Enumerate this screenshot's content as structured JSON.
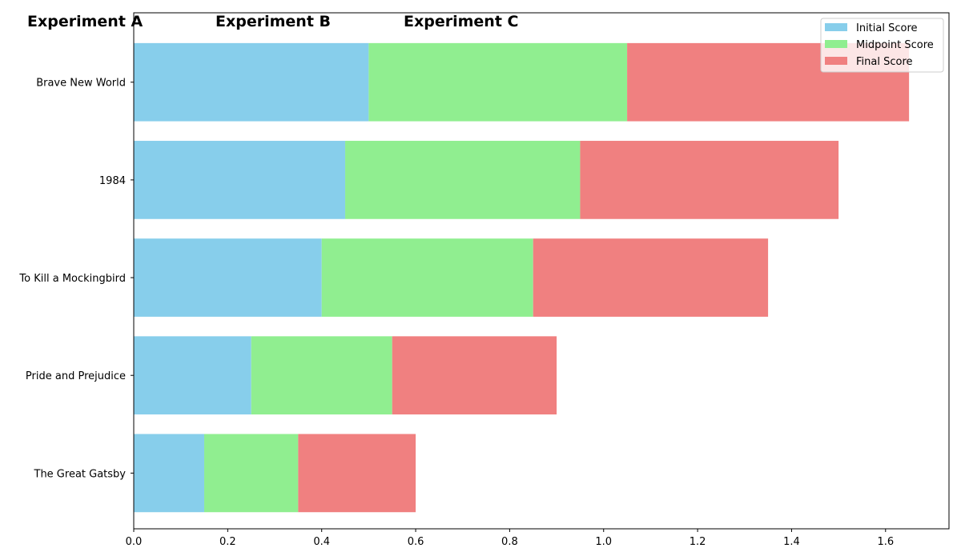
{
  "chart_data": {
    "type": "bar",
    "orientation": "horizontal",
    "stacked": true,
    "categories": [
      "The Great Gatsby",
      "Pride and Prejudice",
      "To Kill a Mockingbird",
      "1984",
      "Brave New World"
    ],
    "series": [
      {
        "name": "Initial Score",
        "color": "#87CEEB",
        "values": [
          0.15,
          0.25,
          0.4,
          0.45,
          0.5
        ]
      },
      {
        "name": "Midpoint Score",
        "color": "#90EE90",
        "values": [
          0.2,
          0.3,
          0.45,
          0.5,
          0.55
        ]
      },
      {
        "name": "Final Score",
        "color": "#F08080",
        "values": [
          0.25,
          0.35,
          0.5,
          0.55,
          0.6
        ]
      }
    ],
    "experiment_labels": [
      "Experiment A",
      "Experiment B",
      "Experiment C"
    ],
    "xlim": [
      0,
      1.735
    ],
    "xticks": [
      0.0,
      0.2,
      0.4,
      0.6,
      0.8,
      1.0,
      1.2,
      1.4,
      1.6
    ],
    "xtick_labels": [
      "0.0",
      "0.2",
      "0.4",
      "0.6",
      "0.8",
      "1.0",
      "1.2",
      "1.4",
      "1.6"
    ],
    "title": "",
    "xlabel": "",
    "ylabel": "",
    "legend_position": "top-right",
    "grid": false
  }
}
